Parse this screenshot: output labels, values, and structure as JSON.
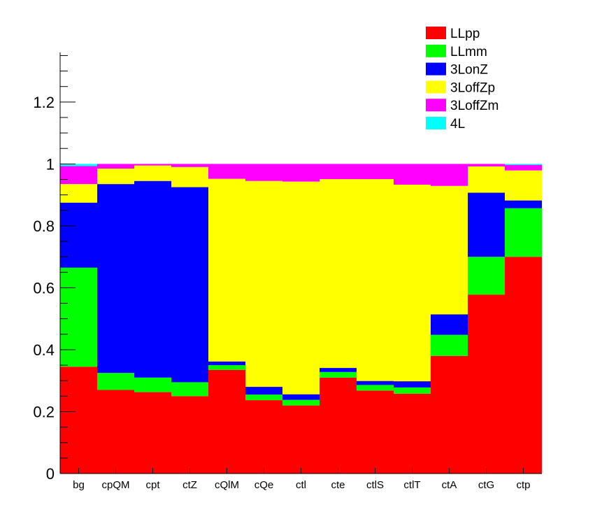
{
  "chart_data": {
    "type": "bar",
    "stacked": true,
    "categories": [
      "bg",
      "cpQM",
      "cpt",
      "ctZ",
      "cQlM",
      "cQe",
      "ctl",
      "cte",
      "ctlS",
      "ctlT",
      "ctA",
      "ctG",
      "ctp"
    ],
    "ylim": [
      0,
      1.36
    ],
    "yticks": [
      0,
      0.2,
      0.4,
      0.6,
      0.8,
      1,
      1.2
    ],
    "ytick_labels": [
      "0",
      "0.2",
      "0.4",
      "0.6",
      "0.8",
      "1",
      "1.2"
    ],
    "grid": false,
    "legend_position": "top-right",
    "series": [
      {
        "name": "LLpp",
        "color": "#ff0000",
        "values": [
          0.345,
          0.27,
          0.263,
          0.25,
          0.335,
          0.237,
          0.22,
          0.31,
          0.268,
          0.258,
          0.38,
          0.578,
          0.7
        ]
      },
      {
        "name": "LLmm",
        "color": "#00ff00",
        "values": [
          0.32,
          0.055,
          0.047,
          0.045,
          0.015,
          0.018,
          0.018,
          0.018,
          0.018,
          0.02,
          0.068,
          0.122,
          0.157
        ]
      },
      {
        "name": "3LonZ",
        "color": "#0000ff",
        "values": [
          0.21,
          0.61,
          0.635,
          0.63,
          0.012,
          0.025,
          0.018,
          0.013,
          0.013,
          0.02,
          0.066,
          0.207,
          0.025
        ]
      },
      {
        "name": "3LoffZp",
        "color": "#ffff00",
        "values": [
          0.06,
          0.05,
          0.05,
          0.065,
          0.59,
          0.665,
          0.687,
          0.61,
          0.652,
          0.635,
          0.415,
          0.085,
          0.097
        ]
      },
      {
        "name": "3LoffZm",
        "color": "#ff00ff",
        "values": [
          0.058,
          0.015,
          0.005,
          0.01,
          0.048,
          0.055,
          0.057,
          0.049,
          0.049,
          0.067,
          0.071,
          0.008,
          0.018
        ]
      },
      {
        "name": "4L",
        "color": "#00ffff",
        "values": [
          0.007,
          0.0,
          0.0,
          0.0,
          0.0,
          0.0,
          0.0,
          0.0,
          0.0,
          0.0,
          0.0,
          0.0,
          0.003
        ]
      }
    ]
  }
}
